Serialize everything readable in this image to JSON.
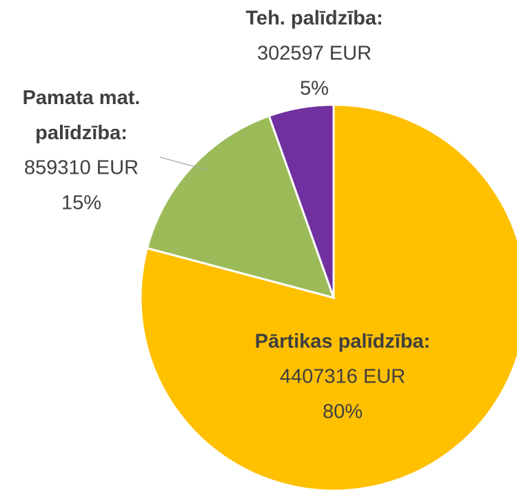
{
  "chart_data": {
    "type": "pie",
    "categories": [
      "Pārtikas palīdzība:",
      "Pamata mat. palīdzība:",
      "Teh. palīdzība:"
    ],
    "values": [
      4407316,
      859310,
      302597
    ],
    "value_labels": [
      "4407316 EUR",
      "859310 EUR",
      "302597 EUR"
    ],
    "percents": [
      80,
      15,
      5
    ],
    "percent_labels": [
      "80%",
      "15%",
      "5%"
    ],
    "colors": [
      "#FFC000",
      "#9BBB59",
      "#7030A0"
    ]
  }
}
